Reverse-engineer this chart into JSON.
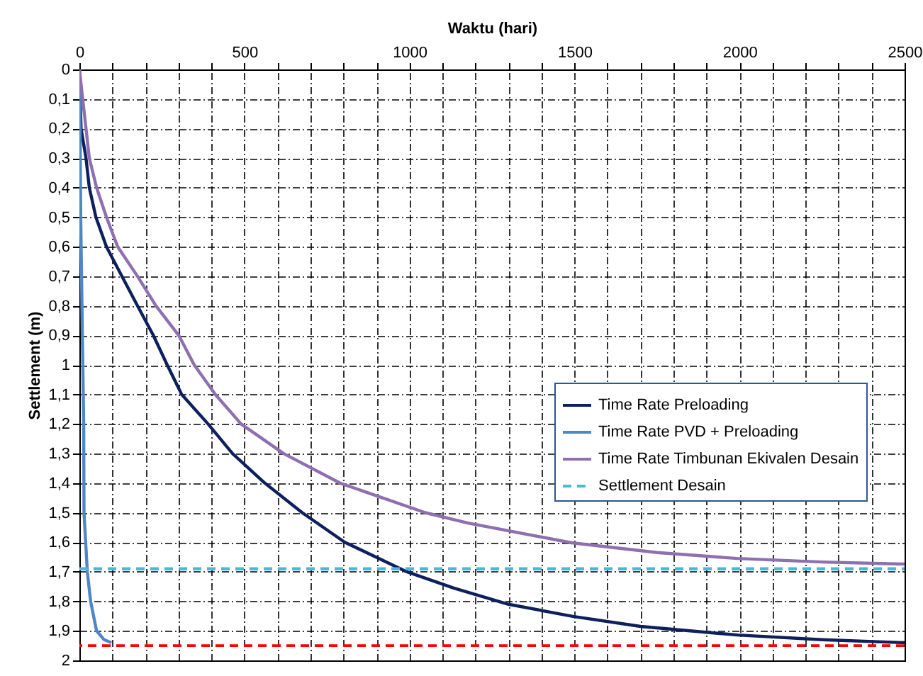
{
  "chart_data": {
    "type": "line",
    "xlabel": "Waktu (hari)",
    "ylabel": "Settlement  (m)",
    "xlim": [
      0,
      2500
    ],
    "ylim": [
      2,
      0
    ],
    "xticks": [
      0,
      {
        "value": 100,
        "label": null
      },
      {
        "value": 200,
        "label": null
      },
      {
        "value": 300,
        "label": null
      },
      {
        "value": 400,
        "label": null
      },
      500,
      {
        "value": 600,
        "label": null
      },
      {
        "value": 700,
        "label": null
      },
      {
        "value": 800,
        "label": null
      },
      {
        "value": 900,
        "label": null
      },
      1000,
      {
        "value": 1100,
        "label": null
      },
      {
        "value": 1200,
        "label": null
      },
      {
        "value": 1300,
        "label": null
      },
      {
        "value": 1400,
        "label": null
      },
      1500,
      {
        "value": 1600,
        "label": null
      },
      {
        "value": 1700,
        "label": null
      },
      {
        "value": 1800,
        "label": null
      },
      {
        "value": 1900,
        "label": null
      },
      2000,
      {
        "value": 2100,
        "label": null
      },
      {
        "value": 2200,
        "label": null
      },
      {
        "value": 2300,
        "label": null
      },
      {
        "value": 2400,
        "label": null
      },
      2500
    ],
    "yticks": [
      0,
      {
        "value": 0.1,
        "label": "0,1"
      },
      {
        "value": 0.2,
        "label": "0,2"
      },
      {
        "value": 0.3,
        "label": "0,3"
      },
      {
        "value": 0.4,
        "label": "0,4"
      },
      {
        "value": 0.5,
        "label": "0,5"
      },
      {
        "value": 0.6,
        "label": "0,6"
      },
      {
        "value": 0.7,
        "label": "0,7"
      },
      {
        "value": 0.8,
        "label": "0,8"
      },
      {
        "value": 0.9,
        "label": "0,9"
      },
      1,
      {
        "value": 1.1,
        "label": "1,1"
      },
      {
        "value": 1.2,
        "label": "1,2"
      },
      {
        "value": 1.3,
        "label": "1,3"
      },
      {
        "value": 1.4,
        "label": "1,4"
      },
      {
        "value": 1.5,
        "label": "1,5"
      },
      {
        "value": 1.6,
        "label": "1,6"
      },
      {
        "value": 1.7,
        "label": "1,7"
      },
      {
        "value": 1.8,
        "label": "1,8"
      },
      {
        "value": 1.9,
        "label": "1,9"
      },
      2
    ],
    "grid": true,
    "legend": "right",
    "marker": "none",
    "series": [
      {
        "name": "Time Rate Preloading",
        "color": "#0d1f5c",
        "line_style": "solid",
        "x": [
          0,
          5,
          20,
          30,
          50,
          82,
          129,
          176,
          224,
          266,
          310,
          390,
          464,
          562,
          675,
          804,
          992,
          1134,
          1300,
          1495,
          1700,
          1993,
          2250,
          2500
        ],
        "values": [
          0,
          0.2,
          0.3,
          0.4,
          0.5,
          0.6,
          0.7,
          0.8,
          0.9,
          1.0,
          1.1,
          1.2,
          1.3,
          1.4,
          1.5,
          1.6,
          1.7,
          1.755,
          1.81,
          1.851,
          1.885,
          1.914,
          1.93,
          1.94
        ]
      },
      {
        "name": "Time Rate PVD + Preloading",
        "color": "#4f86c6",
        "line_style": "solid",
        "x": [
          0,
          2,
          4,
          9,
          13,
          14,
          24,
          34,
          52,
          75,
          97
        ],
        "values": [
          0,
          0.2,
          0.5,
          0.9,
          1.2,
          1.5,
          1.7,
          1.8,
          1.9,
          1.93,
          1.94
        ]
      },
      {
        "name": "Time Rate Timbunan Ekivalen Desain",
        "color": "#8e6fb0",
        "line_style": "solid",
        "x": [
          0,
          30,
          52,
          82,
          116,
          176,
          232,
          301,
          348,
          412,
          490,
          619,
          790,
          1048,
          1177,
          1491,
          1750,
          1993,
          2250,
          2500
        ],
        "values": [
          0,
          0.3,
          0.4,
          0.5,
          0.6,
          0.7,
          0.8,
          0.9,
          1.0,
          1.1,
          1.2,
          1.3,
          1.4,
          1.5,
          1.535,
          1.602,
          1.635,
          1.655,
          1.667,
          1.674
        ]
      },
      {
        "name": "Settlement Desain",
        "color": "#4bb8d6",
        "line_style": "dashed",
        "x": [
          0,
          2500
        ],
        "values": [
          1.69,
          1.69
        ]
      }
    ],
    "ref_lines": [
      {
        "axis": "y",
        "value": 1.95,
        "color": "#ff0000",
        "line_style": "dashed"
      }
    ]
  }
}
